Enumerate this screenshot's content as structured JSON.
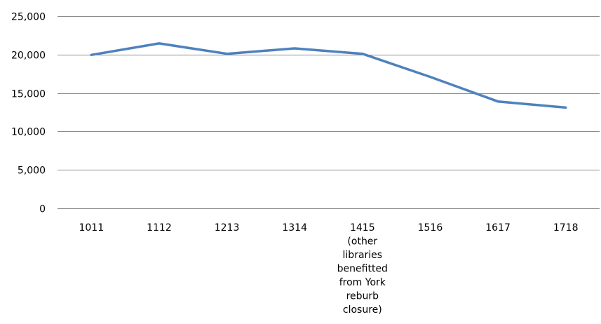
{
  "chart_data": {
    "type": "line",
    "title": "",
    "xlabel": "",
    "ylabel": "",
    "categories": [
      "1011",
      "1112",
      "1213",
      "1314",
      "1415\n(other\nlibraries\nbenefitted\nfrom York\nreburb\nclosure)",
      "1516",
      "1617",
      "1718"
    ],
    "series": [
      {
        "values": [
          19950,
          21450,
          20100,
          20800,
          20100,
          17100,
          13900,
          13100
        ],
        "color": "#4f81bd"
      }
    ],
    "ylim": [
      0,
      25000
    ],
    "yticks": [
      0,
      5000,
      10000,
      15000,
      20000,
      25000
    ],
    "ytick_labels": [
      "0",
      "5,000",
      "10,000",
      "15,000",
      "20,000",
      "25,000"
    ],
    "grid": true,
    "legend": "none"
  }
}
